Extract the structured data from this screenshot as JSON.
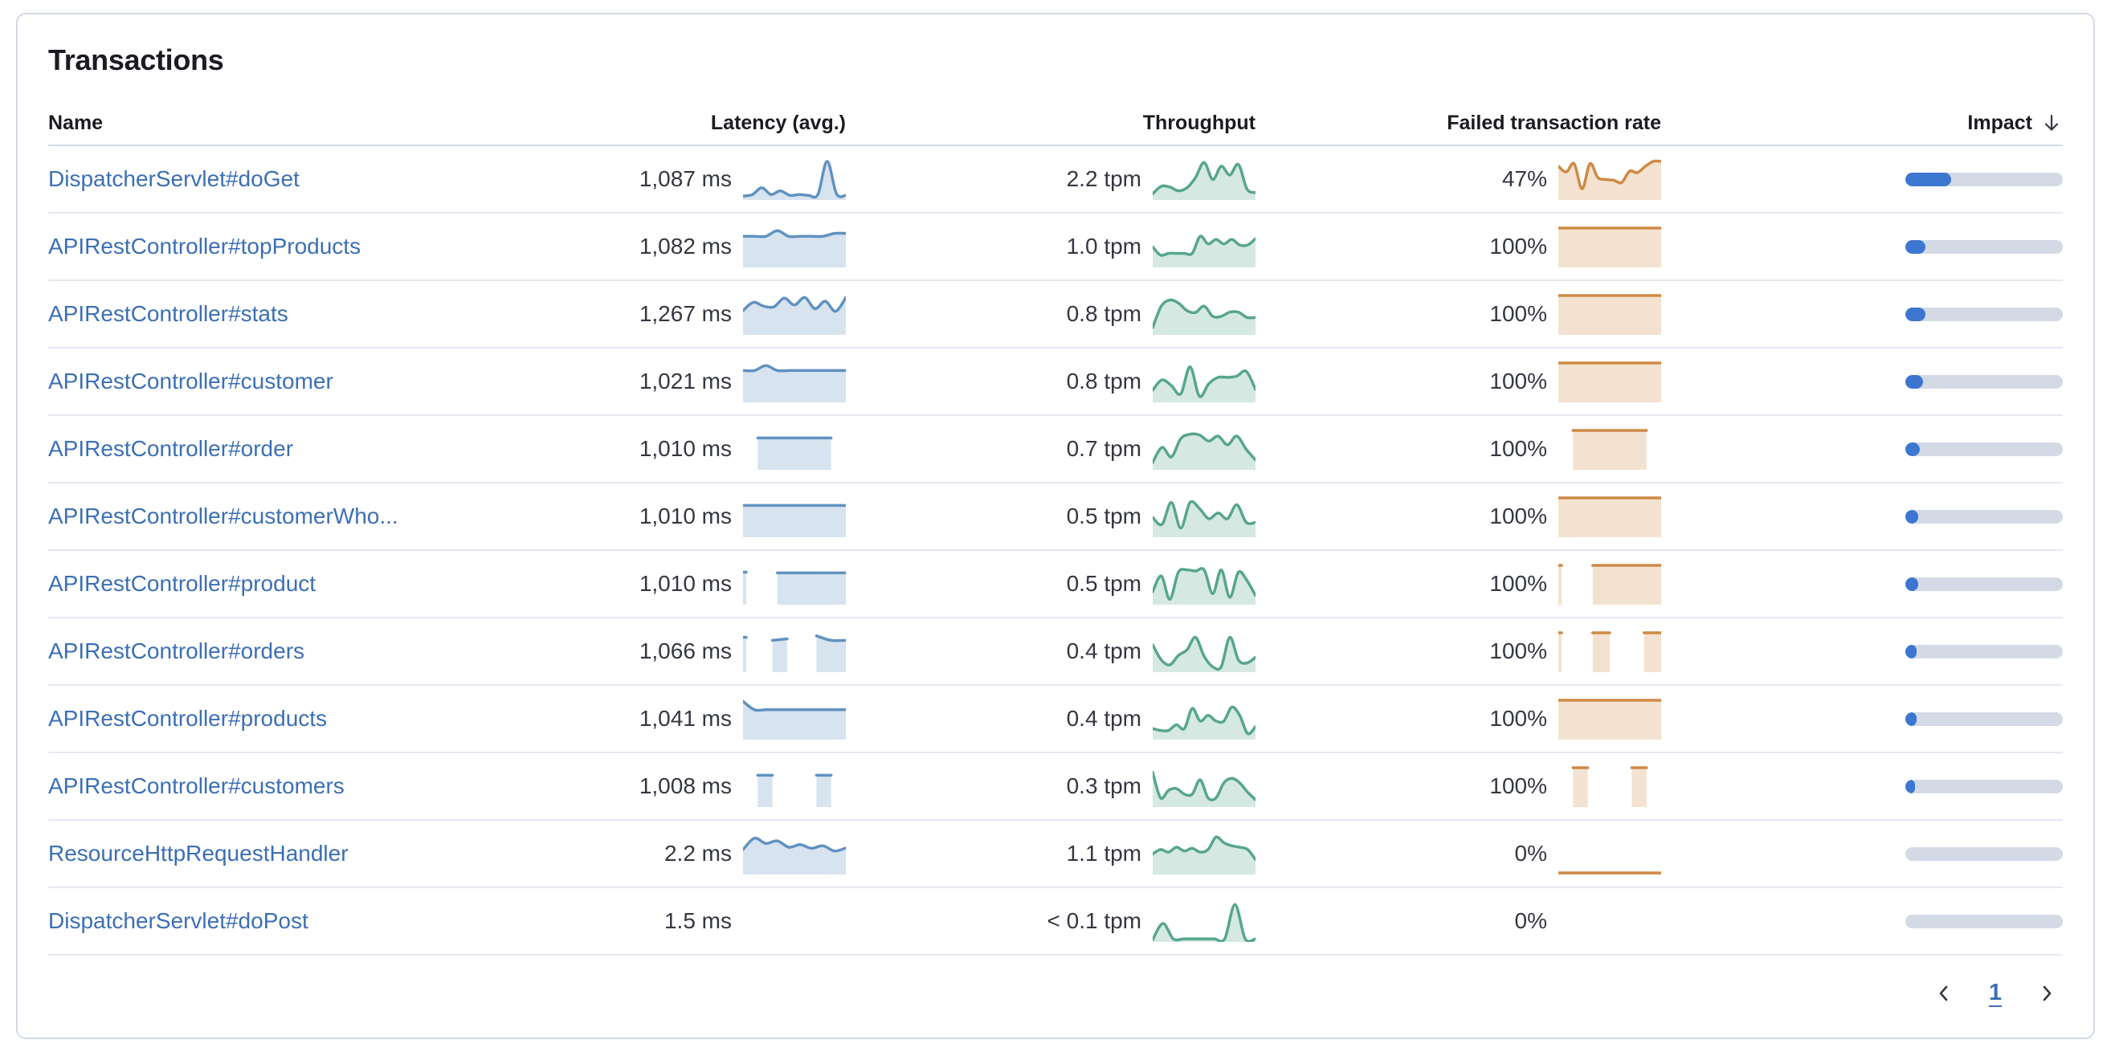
{
  "panel": {
    "title": "Transactions"
  },
  "table": {
    "columns": [
      {
        "label": "Name"
      },
      {
        "label": "Latency (avg.)"
      },
      {
        "label": "Throughput"
      },
      {
        "label": "Failed transaction rate"
      },
      {
        "label": "Impact",
        "sorted": "desc"
      }
    ],
    "rows": [
      {
        "name": "DispatcherServlet#doGet",
        "latency": "1,087 ms",
        "throughput": "2.2 tpm",
        "failed": "47%",
        "impact_pct": 29,
        "latency_spark": [
          0.06,
          0.1,
          0.28,
          0.1,
          0.2,
          0.08,
          0.1,
          0.08,
          0.1,
          0.98,
          0.12,
          0.08
        ],
        "throughput_spark": [
          0.12,
          0.32,
          0.3,
          0.2,
          0.28,
          0.55,
          0.95,
          0.5,
          0.85,
          0.62,
          0.9,
          0.25,
          0.15
        ],
        "failed_spark": [
          0.85,
          0.7,
          0.92,
          0.25,
          0.92,
          0.55,
          0.5,
          0.48,
          0.42,
          0.72,
          0.68,
          0.85,
          0.98,
          0.98
        ]
      },
      {
        "name": "APIRestController#topProducts",
        "latency": "1,082 ms",
        "throughput": "1.0 tpm",
        "failed": "100%",
        "impact_pct": 13,
        "latency_spark": [
          0.78,
          0.78,
          0.78,
          0.93,
          0.78,
          0.78,
          0.78,
          0.78,
          0.86,
          0.86
        ],
        "throughput_spark": [
          0.5,
          0.28,
          0.33,
          0.33,
          0.33,
          0.33,
          0.78,
          0.58,
          0.7,
          0.58,
          0.7,
          0.55,
          0.55,
          0.72
        ],
        "failed_spark": [
          1,
          1,
          1,
          1,
          1,
          1,
          1,
          1,
          1,
          1
        ]
      },
      {
        "name": "APIRestController#stats",
        "latency": "1,267 ms",
        "throughput": "0.8 tpm",
        "failed": "100%",
        "impact_pct": 13,
        "latency_spark": [
          0.6,
          0.82,
          0.72,
          0.7,
          0.93,
          0.75,
          0.95,
          0.65,
          0.85,
          0.58,
          0.95
        ],
        "throughput_spark": [
          0.15,
          0.72,
          0.88,
          0.8,
          0.6,
          0.55,
          0.72,
          0.45,
          0.45,
          0.56,
          0.56,
          0.42,
          0.42
        ],
        "failed_spark": [
          1,
          1,
          1,
          1,
          1,
          1,
          1,
          1,
          1,
          1
        ]
      },
      {
        "name": "APIRestController#customer",
        "latency": "1,021 ms",
        "throughput": "0.8 tpm",
        "failed": "100%",
        "impact_pct": 11,
        "latency_spark": [
          0.8,
          0.8,
          0.93,
          0.8,
          0.8,
          0.8,
          0.8,
          0.8,
          0.8,
          0.8
        ],
        "throughput_spark": [
          0.28,
          0.55,
          0.4,
          0.18,
          0.9,
          0.12,
          0.45,
          0.62,
          0.62,
          0.65,
          0.78,
          0.3
        ],
        "failed_spark": [
          1,
          1,
          1,
          1,
          1,
          1,
          1,
          1,
          1,
          1
        ]
      },
      {
        "name": "APIRestController#order",
        "latency": "1,010 ms",
        "throughput": "0.7 tpm",
        "failed": "100%",
        "impact_pct": 9,
        "latency_spark": [
          null,
          0.8,
          0.8,
          0.8,
          0.8,
          0.8,
          0.8,
          null
        ],
        "throughput_spark": [
          0.15,
          0.55,
          0.3,
          0.78,
          0.9,
          0.88,
          0.72,
          0.85,
          0.62,
          0.85,
          0.5,
          0.22
        ],
        "failed_spark": [
          null,
          1,
          1,
          1,
          1,
          1,
          1,
          null
        ]
      },
      {
        "name": "APIRestController#customerWho...",
        "latency": "1,010 ms",
        "throughput": "0.5 tpm",
        "failed": "100%",
        "impact_pct": 8,
        "latency_spark": [
          0.8,
          0.8,
          0.8,
          0.8,
          0.8,
          0.8,
          0.8,
          0.8,
          0.8,
          0.8
        ],
        "throughput_spark": [
          0.48,
          0.3,
          0.88,
          0.2,
          0.88,
          0.72,
          0.45,
          0.6,
          0.45,
          0.82,
          0.35,
          0.35
        ],
        "failed_spark": [
          1,
          1,
          1,
          1,
          1,
          1,
          1,
          1,
          1,
          1
        ]
      },
      {
        "name": "APIRestController#product",
        "latency": "1,010 ms",
        "throughput": "0.5 tpm",
        "failed": "100%",
        "impact_pct": 8,
        "latency_spark": [
          0.82,
          null,
          null,
          0.8,
          0.8,
          0.8,
          0.8,
          0.8,
          0.8,
          0.8
        ],
        "throughput_spark": [
          0.3,
          0.72,
          0.1,
          0.82,
          0.88,
          0.85,
          0.88,
          0.25,
          0.88,
          0.15,
          0.82,
          0.6,
          0.2
        ],
        "failed_spark": [
          1,
          null,
          null,
          1,
          1,
          1,
          1,
          1,
          1,
          1
        ]
      },
      {
        "name": "APIRestController#orders",
        "latency": "1,066 ms",
        "throughput": "0.4 tpm",
        "failed": "100%",
        "impact_pct": 7,
        "latency_spark": [
          0.88,
          null,
          0.8,
          0.84,
          null,
          0.92,
          0.8,
          0.8
        ],
        "throughput_spark": [
          0.68,
          0.28,
          0.15,
          0.4,
          0.55,
          0.88,
          0.38,
          0.1,
          0.1,
          0.88,
          0.28,
          0.2,
          0.35
        ],
        "failed_spark": [
          1,
          null,
          1,
          1,
          null,
          1,
          1
        ]
      },
      {
        "name": "APIRestController#products",
        "latency": "1,041 ms",
        "throughput": "0.4 tpm",
        "failed": "100%",
        "impact_pct": 7,
        "latency_spark": [
          0.97,
          0.75,
          0.75,
          0.75,
          0.75,
          0.75,
          0.75,
          0.75,
          0.75,
          0.75
        ],
        "throughput_spark": [
          0.25,
          0.2,
          0.2,
          0.35,
          0.25,
          0.78,
          0.45,
          0.6,
          0.45,
          0.45,
          0.82,
          0.6,
          0.12,
          0.3
        ],
        "failed_spark": [
          1,
          1,
          1,
          1,
          1,
          1,
          1,
          1,
          1,
          1
        ]
      },
      {
        "name": "APIRestController#customers",
        "latency": "1,008 ms",
        "throughput": "0.3 tpm",
        "failed": "100%",
        "impact_pct": 6,
        "latency_spark": [
          null,
          0.8,
          0.8,
          null,
          null,
          0.8,
          0.8,
          null
        ],
        "throughput_spark": [
          0.88,
          0.2,
          0.4,
          0.45,
          0.3,
          0.3,
          0.68,
          0.2,
          0.2,
          0.6,
          0.72,
          0.6,
          0.35,
          0.15
        ],
        "failed_spark": [
          null,
          1,
          1,
          null,
          null,
          1,
          1,
          null
        ]
      },
      {
        "name": "ResourceHttpRequestHandler",
        "latency": "2.2 ms",
        "throughput": "1.1 tpm",
        "failed": "0%",
        "impact_pct": 0,
        "latency_spark": [
          0.62,
          0.92,
          0.78,
          0.85,
          0.68,
          0.75,
          0.65,
          0.72,
          0.58,
          0.66
        ],
        "throughput_spark": [
          0.5,
          0.62,
          0.55,
          0.68,
          0.58,
          0.65,
          0.55,
          0.62,
          0.95,
          0.8,
          0.72,
          0.68,
          0.62,
          0.35
        ],
        "failed_spark": [
          0,
          0,
          0,
          0,
          0,
          0,
          0,
          0,
          0,
          0
        ]
      },
      {
        "name": "DispatcherServlet#doPost",
        "latency": "1.5 ms",
        "throughput": "< 0.1 tpm",
        "failed": "0%",
        "impact_pct": 0,
        "latency_spark": null,
        "throughput_spark": [
          0.02,
          0.45,
          0.04,
          0.04,
          0.04,
          0.04,
          0.04,
          0.04,
          0.95,
          0.04,
          0.04
        ],
        "failed_spark": null
      }
    ]
  },
  "pagination": {
    "page": "1"
  },
  "colors": {
    "link": "#3B6FB5",
    "latency": "#6092C0",
    "throughput": "#57A68A",
    "failed": "#CE8A45",
    "impact_fill": "#3C76D0",
    "impact_track": "#D3DAE6",
    "text": "#343741",
    "heading": "#1a1c21"
  }
}
